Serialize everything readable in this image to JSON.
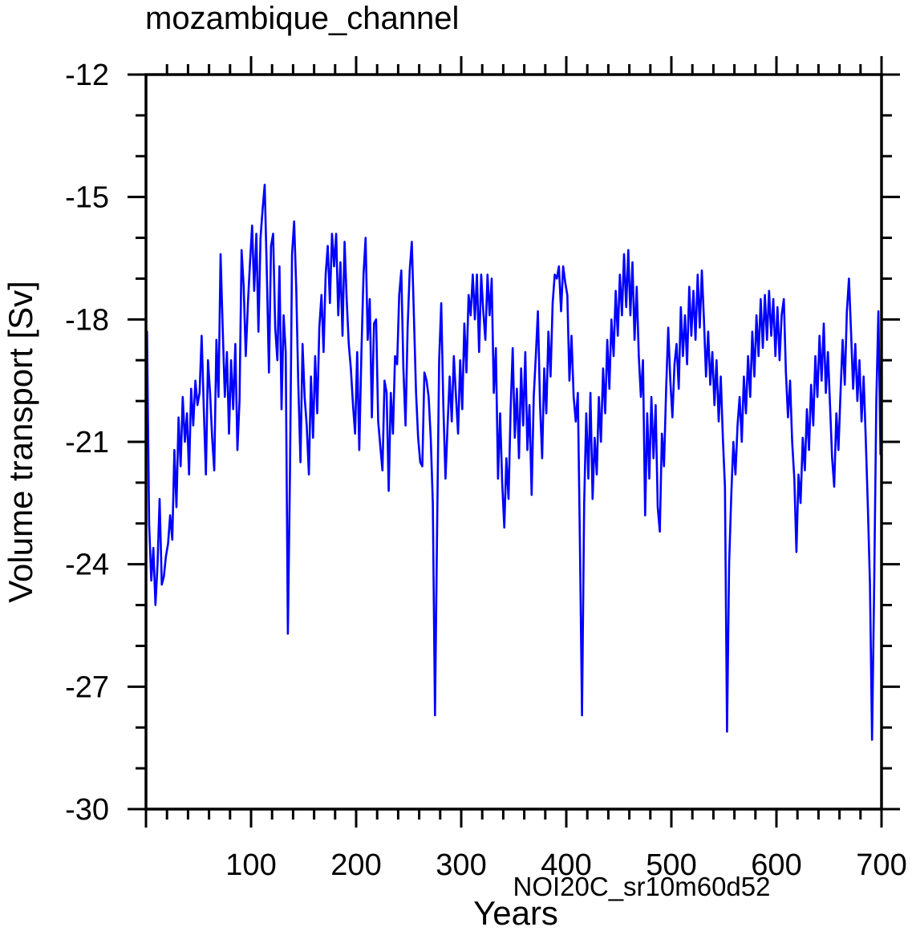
{
  "title": "mozambique_channel",
  "axis": {
    "xlabel": "Years",
    "ylabel": "Volume transport [Sv]"
  },
  "annotation": {
    "text": "NOI20C_sr10m60d52",
    "color": "#0000ff"
  },
  "colors": {
    "line": "#0000ff",
    "axis": "#000000",
    "background": "#ffffff"
  },
  "chart_data": {
    "type": "line",
    "title": "mozambique_channel",
    "xlabel": "Years",
    "ylabel": "Volume transport [Sv]",
    "xlim": [
      0,
      700
    ],
    "ylim": [
      -30,
      -12
    ],
    "grid": false,
    "legend_position": "none",
    "x_major_ticks": [
      100,
      200,
      300,
      400,
      500,
      600,
      700
    ],
    "x_minor_step": 20,
    "y_major_ticks": [
      -12,
      -15,
      -18,
      -21,
      -24,
      -27,
      -30
    ],
    "y_minor_step": 1,
    "series": [
      {
        "name": "NOI20C_sr10m60d52",
        "color": "#0000ff",
        "x_start": 1,
        "x_step": 2,
        "values": [
          -18.3,
          -23.0,
          -24.4,
          -23.6,
          -25.0,
          -24.0,
          -22.4,
          -24.5,
          -24.3,
          -23.8,
          -23.5,
          -22.8,
          -23.4,
          -21.2,
          -22.6,
          -20.4,
          -21.6,
          -19.9,
          -21.0,
          -20.3,
          -21.8,
          -19.7,
          -20.6,
          -19.5,
          -20.1,
          -19.8,
          -18.4,
          -20.2,
          -21.8,
          -19.0,
          -19.8,
          -20.9,
          -21.7,
          -18.5,
          -19.9,
          -16.4,
          -18.2,
          -19.9,
          -18.8,
          -20.8,
          -19.0,
          -20.2,
          -18.6,
          -21.2,
          -20.0,
          -16.3,
          -17.2,
          -18.9,
          -17.6,
          -16.6,
          -15.7,
          -17.3,
          -15.9,
          -18.3,
          -16.0,
          -15.3,
          -14.7,
          -16.8,
          -19.3,
          -16.2,
          -15.9,
          -18.2,
          -19.0,
          -16.7,
          -20.2,
          -17.9,
          -18.8,
          -25.7,
          -21.8,
          -16.4,
          -15.6,
          -17.2,
          -19.6,
          -21.5,
          -18.6,
          -19.9,
          -20.6,
          -21.8,
          -19.4,
          -20.9,
          -18.9,
          -20.3,
          -18.2,
          -17.4,
          -18.8,
          -16.9,
          -16.2,
          -17.6,
          -15.9,
          -16.7,
          -15.9,
          -17.9,
          -16.6,
          -18.4,
          -16.1,
          -17.5,
          -18.6,
          -19.2,
          -20.1,
          -20.8,
          -18.8,
          -21.2,
          -18.8,
          -16.9,
          -16.0,
          -18.5,
          -17.5,
          -20.4,
          -18.1,
          -18.0,
          -20.5,
          -21.1,
          -21.7,
          -19.5,
          -19.8,
          -22.2,
          -19.8,
          -20.8,
          -18.9,
          -19.1,
          -17.4,
          -16.8,
          -19.2,
          -20.6,
          -18.2,
          -16.8,
          -16.1,
          -17.9,
          -19.8,
          -20.9,
          -21.5,
          -21.6,
          -19.3,
          -19.5,
          -19.9,
          -20.9,
          -22.5,
          -27.7,
          -23.2,
          -19.0,
          -17.6,
          -20.1,
          -21.9,
          -20.6,
          -19.4,
          -20.5,
          -18.9,
          -19.9,
          -20.8,
          -19.0,
          -20.2,
          -18.1,
          -19.3,
          -17.4,
          -17.9,
          -16.9,
          -18.0,
          -16.9,
          -18.8,
          -16.9,
          -17.8,
          -18.5,
          -16.9,
          -17.9,
          -17.0,
          -19.8,
          -18.7,
          -21.9,
          -20.3,
          -22.0,
          -23.1,
          -21.4,
          -22.4,
          -20.2,
          -18.7,
          -20.9,
          -19.7,
          -21.4,
          -19.2,
          -20.6,
          -18.8,
          -21.2,
          -20.1,
          -22.3,
          -19.9,
          -18.9,
          -17.8,
          -20.1,
          -21.4,
          -19.2,
          -20.3,
          -18.3,
          -19.4,
          -17.6,
          -16.9,
          -17.0,
          -16.7,
          -17.8,
          -16.7,
          -17.1,
          -17.4,
          -19.5,
          -18.4,
          -19.9,
          -20.5,
          -19.8,
          -23.5,
          -27.7,
          -22.5,
          -20.3,
          -21.9,
          -19.8,
          -22.4,
          -20.9,
          -21.8,
          -19.9,
          -21.0,
          -19.2,
          -20.3,
          -18.5,
          -19.7,
          -18.0,
          -18.9,
          -17.3,
          -18.4,
          -16.9,
          -17.9,
          -16.4,
          -17.7,
          -16.3,
          -17.9,
          -16.6,
          -18.5,
          -17.2,
          -18.9,
          -19.9,
          -19.0,
          -22.8,
          -20.3,
          -21.9,
          -19.9,
          -21.4,
          -20.1,
          -22.6,
          -23.2,
          -20.8,
          -21.6,
          -19.7,
          -18.2,
          -19.5,
          -20.4,
          -19.1,
          -18.6,
          -19.7,
          -17.7,
          -18.9,
          -17.9,
          -19.1,
          -17.2,
          -18.4,
          -17.3,
          -18.5,
          -16.9,
          -18.2,
          -16.8,
          -18.0,
          -19.4,
          -18.3,
          -19.6,
          -18.8,
          -20.1,
          -19.0,
          -20.5,
          -19.4,
          -20.9,
          -22.1,
          -28.1,
          -24.0,
          -22.3,
          -21.0,
          -21.8,
          -20.6,
          -19.9,
          -21.0,
          -19.4,
          -20.3,
          -18.9,
          -19.9,
          -18.3,
          -19.4,
          -17.9,
          -18.9,
          -17.5,
          -18.7,
          -17.4,
          -18.5,
          -17.3,
          -18.4,
          -17.5,
          -18.9,
          -17.7,
          -19.0,
          -17.9,
          -17.5,
          -19.3,
          -20.4,
          -19.5,
          -21.0,
          -21.9,
          -23.7,
          -21.8,
          -22.5,
          -20.9,
          -21.7,
          -20.2,
          -21.2,
          -19.6,
          -20.6,
          -18.9,
          -19.9,
          -18.4,
          -19.5,
          -18.1,
          -19.8,
          -18.8,
          -20.1,
          -21.4,
          -22.1,
          -20.3,
          -21.2,
          -19.8,
          -18.5,
          -19.6,
          -17.8,
          -17.0,
          -18.3,
          -19.7,
          -18.6,
          -20.0,
          -19.0,
          -20.5,
          -19.4,
          -20.9,
          -22.6,
          -24.5,
          -28.3,
          -24.6,
          -20.0,
          -17.8,
          -21.3
        ]
      }
    ]
  }
}
